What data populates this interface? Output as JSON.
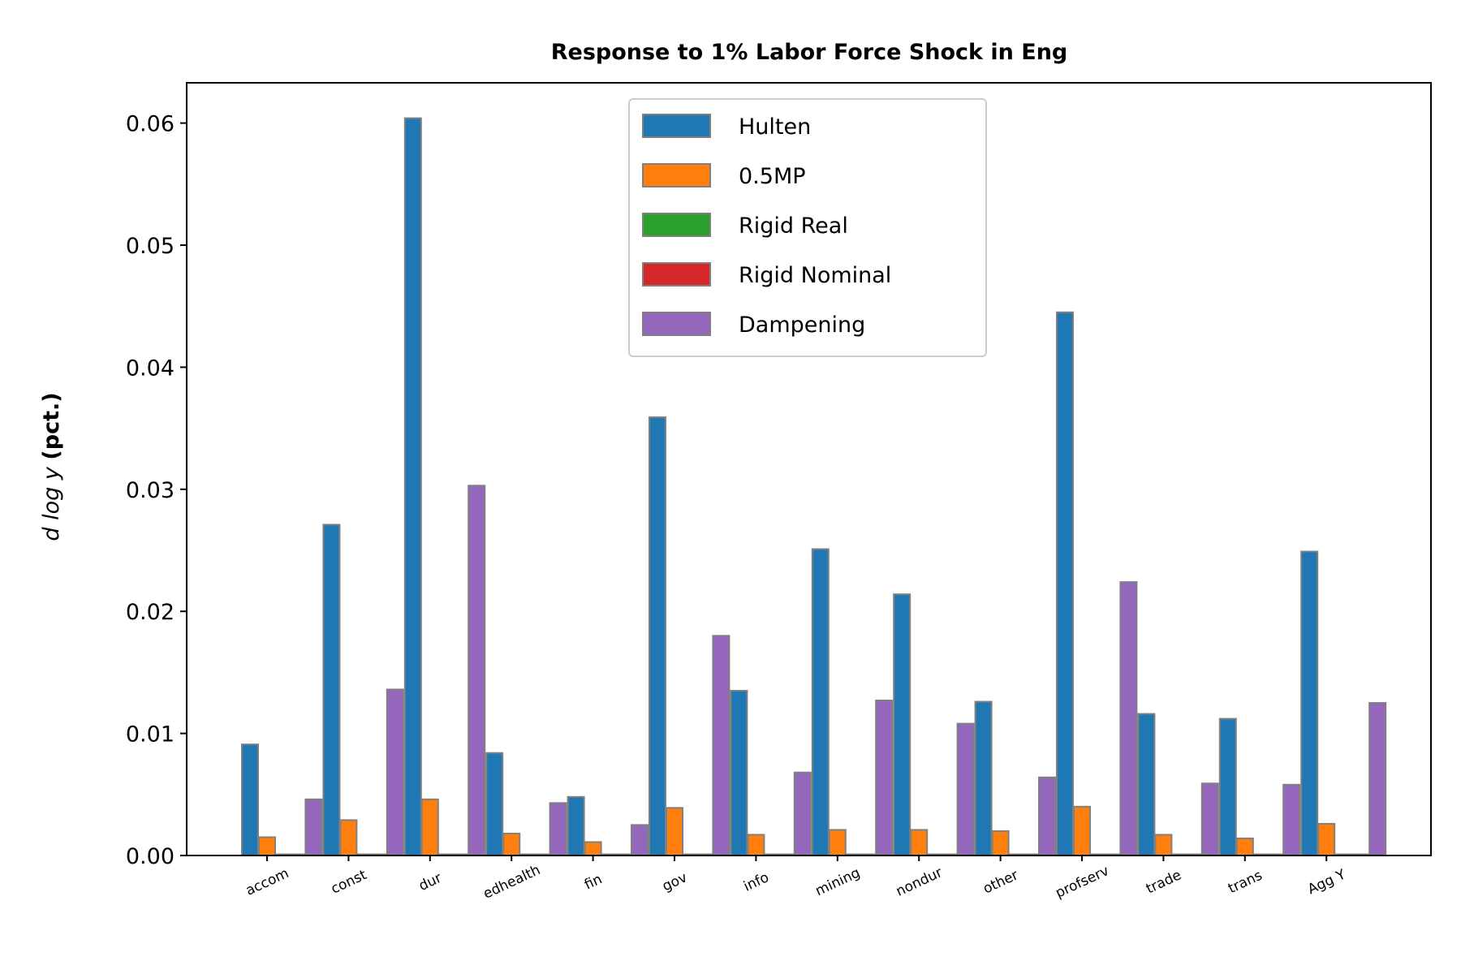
{
  "chart_data": {
    "type": "bar",
    "title": "Response to 1% Labor Force Shock in Eng",
    "ylabel_math": "d log y",
    "ylabel_unit": "(pct.)",
    "xlabel": "",
    "ylim": [
      0,
      0.0633
    ],
    "yticks": [
      0.0,
      0.01,
      0.02,
      0.03,
      0.04,
      0.05,
      0.06
    ],
    "ytick_labels": [
      "0.00",
      "0.01",
      "0.02",
      "0.03",
      "0.04",
      "0.05",
      "0.06"
    ],
    "categories": [
      "accom",
      "const",
      "dur",
      "edhealth",
      "fin",
      "gov",
      "info",
      "mining",
      "nondur",
      "other",
      "profserv",
      "trade",
      "trans",
      "Agg Y"
    ],
    "series": [
      {
        "name": "Dampening",
        "color": "#9467bd",
        "values": [
          0.0,
          0.0046,
          0.0136,
          0.0303,
          0.0043,
          0.0025,
          0.018,
          0.0068,
          0.0127,
          0.0108,
          0.0064,
          0.0224,
          0.0059,
          0.0058
        ]
      },
      {
        "name": "Hulten",
        "color": "#1f77b4",
        "values": [
          0.0091,
          0.0271,
          0.0604,
          0.0084,
          0.0048,
          0.0359,
          0.0135,
          0.0251,
          0.0214,
          0.0126,
          0.0445,
          0.0116,
          0.0112,
          0.0249
        ]
      },
      {
        "name": "0.5MP",
        "color": "#ff7f0e",
        "values": [
          0.0015,
          0.0029,
          0.0046,
          0.0018,
          0.0011,
          0.0039,
          0.0017,
          0.0021,
          0.0021,
          0.002,
          0.004,
          0.0017,
          0.0014,
          0.0026
        ]
      },
      {
        "name": "Rigid Real",
        "color": "#2ca02c",
        "values": [
          0.0001,
          0.0001,
          0.0001,
          0.0001,
          0.0001,
          0.0001,
          0.0001,
          0.0001,
          0.0001,
          0.0001,
          0.0001,
          0.0001,
          0.0001,
          0.0001
        ]
      },
      {
        "name": "Rigid Nominal",
        "color": "#d62728",
        "values": [
          0.0001,
          0.0001,
          0.0001,
          0.0001,
          0.0001,
          0.0001,
          0.0001,
          0.0001,
          0.0001,
          0.0001,
          0.0001,
          0.0001,
          0.0001,
          0.0001
        ]
      }
    ],
    "extra_bar": {
      "name": "Dampening",
      "category": "Agg Y",
      "value": 0.0125
    },
    "legend": {
      "position": "top-center",
      "order": [
        "Hulten",
        "0.5MP",
        "Rigid Real",
        "Rigid Nominal",
        "Dampening"
      ]
    },
    "grid": false,
    "bar_edge_color": "#808080"
  }
}
